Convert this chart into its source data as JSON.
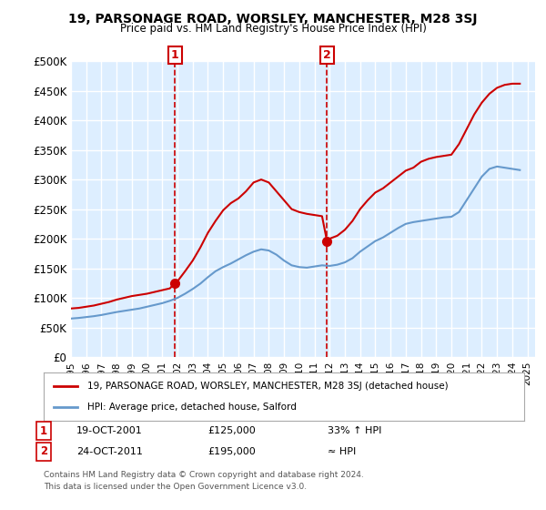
{
  "title": "19, PARSONAGE ROAD, WORSLEY, MANCHESTER, M28 3SJ",
  "subtitle": "Price paid vs. HM Land Registry's House Price Index (HPI)",
  "legend_line1": "19, PARSONAGE ROAD, WORSLEY, MANCHESTER, M28 3SJ (detached house)",
  "legend_line2": "HPI: Average price, detached house, Salford",
  "marker1_label": "1",
  "marker1_date": "19-OCT-2001",
  "marker1_price": "£125,000",
  "marker1_hpi": "33% ↑ HPI",
  "marker2_label": "2",
  "marker2_date": "24-OCT-2011",
  "marker2_price": "£195,000",
  "marker2_hpi": "≈ HPI",
  "footnote1": "Contains HM Land Registry data © Crown copyright and database right 2024.",
  "footnote2": "This data is licensed under the Open Government Licence v3.0.",
  "red_color": "#cc0000",
  "blue_color": "#6699cc",
  "marker_box_color": "#cc0000",
  "background_color": "#ffffff",
  "plot_bg_color": "#ddeeff",
  "grid_color": "#ffffff",
  "ylim": [
    0,
    500000
  ],
  "xlim_start": 1995.0,
  "xlim_end": 2025.5,
  "red_x": [
    1995.0,
    1995.5,
    1996.0,
    1996.5,
    1997.0,
    1997.5,
    1998.0,
    1998.5,
    1999.0,
    1999.5,
    2000.0,
    2000.5,
    2001.0,
    2001.5,
    2001.83,
    2002.0,
    2002.5,
    2003.0,
    2003.5,
    2004.0,
    2004.5,
    2005.0,
    2005.5,
    2006.0,
    2006.5,
    2007.0,
    2007.5,
    2008.0,
    2008.5,
    2009.0,
    2009.5,
    2010.0,
    2010.5,
    2011.0,
    2011.5,
    2011.83,
    2012.0,
    2012.5,
    2013.0,
    2013.5,
    2014.0,
    2014.5,
    2015.0,
    2015.5,
    2016.0,
    2016.5,
    2017.0,
    2017.5,
    2018.0,
    2018.5,
    2019.0,
    2019.5,
    2020.0,
    2020.5,
    2021.0,
    2021.5,
    2022.0,
    2022.5,
    2023.0,
    2023.5,
    2024.0,
    2024.5
  ],
  "red_y": [
    82000,
    83000,
    85000,
    87000,
    90000,
    93000,
    97000,
    100000,
    103000,
    105000,
    107000,
    110000,
    113000,
    116000,
    125000,
    128000,
    145000,
    163000,
    185000,
    210000,
    230000,
    248000,
    260000,
    268000,
    280000,
    295000,
    300000,
    295000,
    280000,
    265000,
    250000,
    245000,
    242000,
    240000,
    238000,
    195000,
    200000,
    205000,
    215000,
    230000,
    250000,
    265000,
    278000,
    285000,
    295000,
    305000,
    315000,
    320000,
    330000,
    335000,
    338000,
    340000,
    342000,
    360000,
    385000,
    410000,
    430000,
    445000,
    455000,
    460000,
    462000,
    462000
  ],
  "blue_x": [
    1995.0,
    1995.5,
    1996.0,
    1996.5,
    1997.0,
    1997.5,
    1998.0,
    1998.5,
    1999.0,
    1999.5,
    2000.0,
    2000.5,
    2001.0,
    2001.5,
    2002.0,
    2002.5,
    2003.0,
    2003.5,
    2004.0,
    2004.5,
    2005.0,
    2005.5,
    2006.0,
    2006.5,
    2007.0,
    2007.5,
    2008.0,
    2008.5,
    2009.0,
    2009.5,
    2010.0,
    2010.5,
    2011.0,
    2011.5,
    2012.0,
    2012.5,
    2013.0,
    2013.5,
    2014.0,
    2014.5,
    2015.0,
    2015.5,
    2016.0,
    2016.5,
    2017.0,
    2017.5,
    2018.0,
    2018.5,
    2019.0,
    2019.5,
    2020.0,
    2020.5,
    2021.0,
    2021.5,
    2022.0,
    2022.5,
    2023.0,
    2023.5,
    2024.0,
    2024.5
  ],
  "blue_y": [
    65000,
    66000,
    67500,
    69000,
    71000,
    73500,
    76000,
    78000,
    80000,
    82000,
    85000,
    88000,
    91000,
    95000,
    100000,
    107000,
    115000,
    124000,
    135000,
    145000,
    152000,
    158000,
    165000,
    172000,
    178000,
    182000,
    180000,
    173000,
    163000,
    155000,
    152000,
    151000,
    153000,
    155000,
    154000,
    156000,
    160000,
    167000,
    178000,
    187000,
    196000,
    202000,
    210000,
    218000,
    225000,
    228000,
    230000,
    232000,
    234000,
    236000,
    237000,
    245000,
    265000,
    285000,
    305000,
    318000,
    322000,
    320000,
    318000,
    316000
  ],
  "marker1_x": 2001.83,
  "marker1_y": 125000,
  "marker2_x": 2011.83,
  "marker2_y": 195000,
  "vline1_x": 2001.83,
  "vline2_x": 2011.83
}
